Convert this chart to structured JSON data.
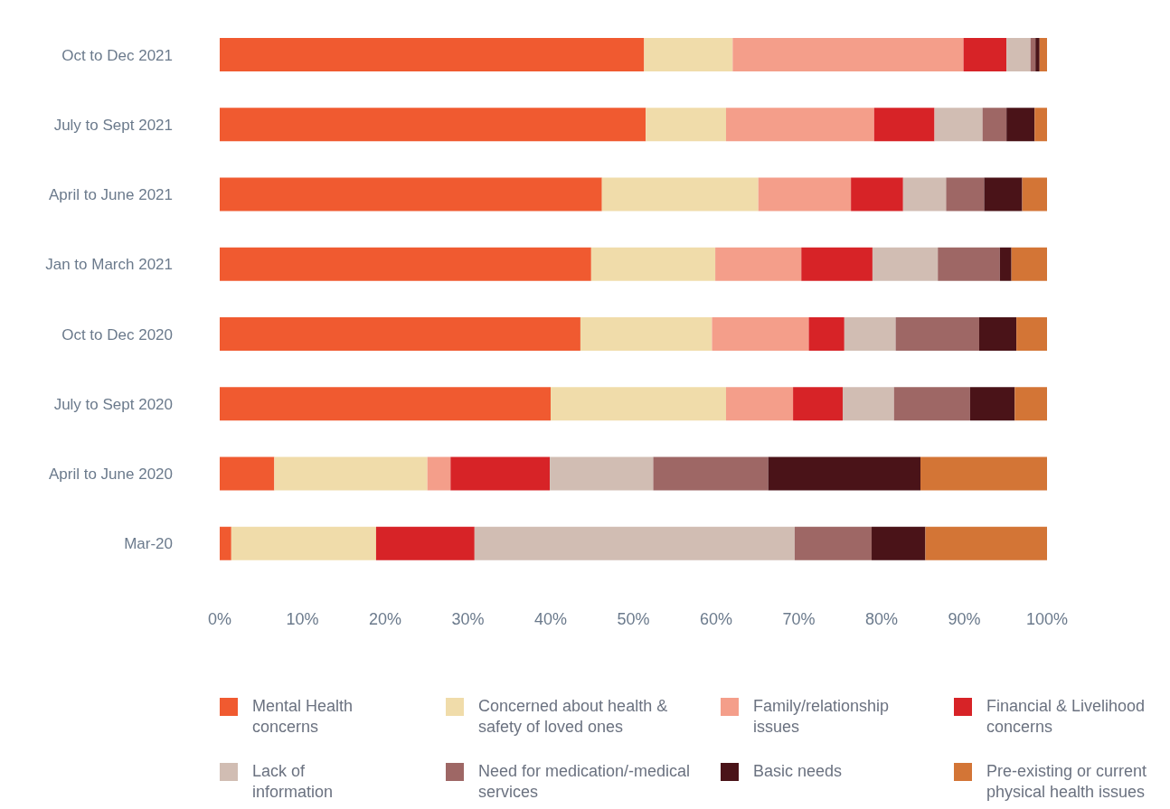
{
  "chart_data": {
    "type": "bar",
    "orientation": "horizontal",
    "stacked": true,
    "categories": [
      "Oct to Dec 2021",
      "July to Sept 2021",
      "April to June 2021",
      "Jan to March 2021",
      "Oct to Dec 2020",
      "July to Sept 2020",
      "April to June 2020",
      "Mar-20"
    ],
    "series": [
      {
        "name": "Mental Health concerns",
        "color": "#f05a30",
        "values": [
          51.3,
          51.5,
          46.2,
          44.9,
          43.6,
          40.0,
          6.6,
          1.4
        ]
      },
      {
        "name": "Concerned about health & safety of loved ones",
        "color": "#f0dcaa",
        "values": [
          10.7,
          9.7,
          18.9,
          15.0,
          15.9,
          21.2,
          18.5,
          17.5
        ]
      },
      {
        "name": "Family/relationship issues",
        "color": "#f49e8a",
        "values": [
          27.9,
          17.9,
          11.2,
          10.4,
          11.7,
          8.1,
          2.8,
          0
        ]
      },
      {
        "name": "Financial & Livelihood concerns",
        "color": "#d72327",
        "values": [
          5.2,
          7.3,
          6.3,
          8.6,
          4.3,
          6.0,
          12.0,
          11.9
        ]
      },
      {
        "name": "Lack of information",
        "color": "#d1bdb3",
        "values": [
          2.9,
          5.8,
          5.2,
          7.9,
          6.2,
          6.2,
          12.5,
          38.7
        ]
      },
      {
        "name": "Need for medication/-medical services",
        "color": "#9e6765",
        "values": [
          0.6,
          2.9,
          4.6,
          7.5,
          10.1,
          9.2,
          13.9,
          9.3
        ]
      },
      {
        "name": "Basic needs",
        "color": "#4a1318",
        "values": [
          0.5,
          3.4,
          4.6,
          1.4,
          4.5,
          5.4,
          18.4,
          6.5
        ]
      },
      {
        "name": "Pre-existing or current physical health issues",
        "color": "#d37536",
        "values": [
          0.9,
          1.5,
          3.0,
          4.3,
          3.7,
          3.9,
          15.3,
          14.7
        ]
      }
    ],
    "xlim": [
      0,
      100
    ],
    "xticks": [
      {
        "value": 0,
        "label": "0%"
      },
      {
        "value": 10,
        "label": "10%"
      },
      {
        "value": 20,
        "label": "20%"
      },
      {
        "value": 30,
        "label": "30%"
      },
      {
        "value": 40,
        "label": "40%"
      },
      {
        "value": 50,
        "label": "50%"
      },
      {
        "value": 60,
        "label": "60%"
      },
      {
        "value": 70,
        "label": "70%"
      },
      {
        "value": 80,
        "label": "80%"
      },
      {
        "value": 90,
        "label": "90%"
      },
      {
        "value": 100,
        "label": "100%"
      }
    ],
    "grid": false,
    "legend": "bottom"
  }
}
